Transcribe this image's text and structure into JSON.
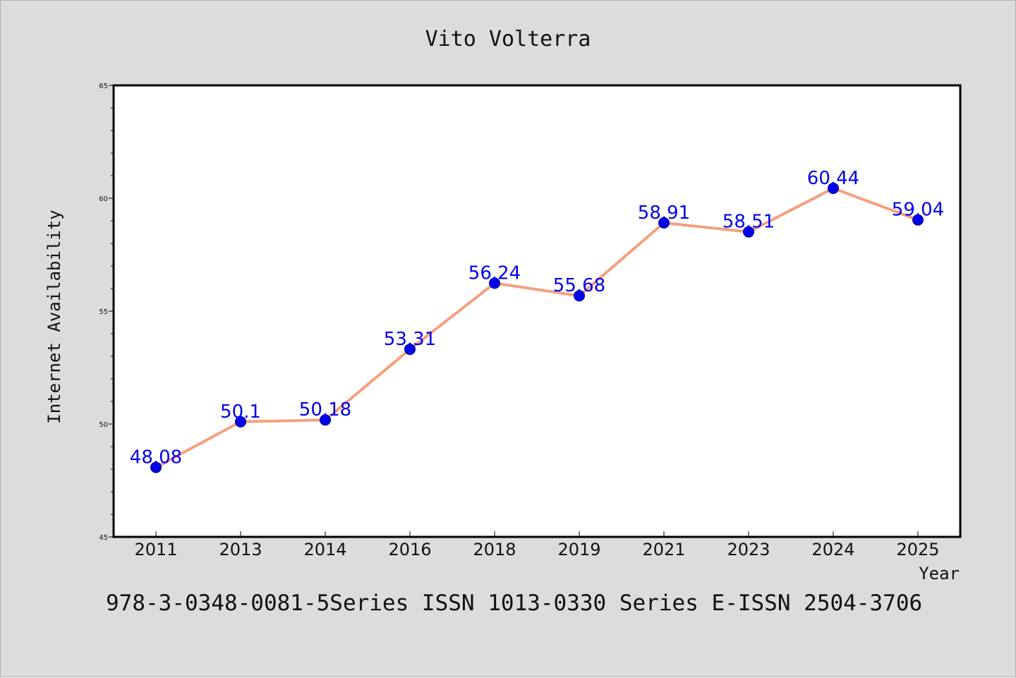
{
  "chart_data": {
    "type": "line",
    "title": "Vito Volterra",
    "xlabel": "Year",
    "ylabel": "Internet Availability",
    "categories": [
      "2011",
      "2013",
      "2014",
      "2016",
      "2018",
      "2019",
      "2021",
      "2023",
      "2024",
      "2025"
    ],
    "series": [
      {
        "values": [
          48.08,
          50.1,
          50.18,
          53.31,
          56.24,
          55.68,
          58.91,
          58.51,
          60.44,
          59.04
        ]
      }
    ],
    "data_labels": [
      "48.08",
      "50.1",
      "50.18",
      "53.31",
      "56.24",
      "55.68",
      "58.91",
      "58.51",
      "60.44",
      "59.04"
    ],
    "ylim": [
      45,
      65
    ],
    "yticks": [
      "45",
      "50",
      "55",
      "60",
      "65"
    ],
    "grid": false,
    "legend": "none",
    "colors": {
      "line": "#f4a07e",
      "marker": "#0000ee",
      "data_label": "#0000ee",
      "plot_background": "#ffffff",
      "figure_background": "#dcdcdc"
    }
  },
  "footer": {
    "text": "978-3-0348-0081-5Series ISSN 1013-0330 Series E-ISSN 2504-3706"
  }
}
